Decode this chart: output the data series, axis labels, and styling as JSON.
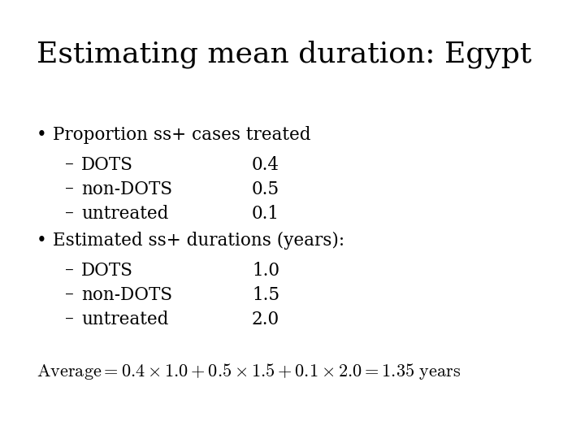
{
  "title": "Estimating mean duration: Egypt",
  "background_color": "#ffffff",
  "text_color": "#000000",
  "title_fontsize": 26,
  "body_fontsize": 15.5,
  "formula_fontsize": 16,
  "bullet1": "Proportion ss+ cases treated",
  "sub1_1": "DOTS",
  "sub1_1_val": "0.4",
  "sub1_2": "non-DOTS",
  "sub1_2_val": "0.5",
  "sub1_3": "untreated",
  "sub1_3_val": "0.1",
  "bullet2": "Estimated ss+ durations (years):",
  "sub2_1": "DOTS",
  "sub2_1_val": "1.0",
  "sub2_2": "non-DOTS",
  "sub2_2_val": "1.5",
  "sub2_3": "untreated",
  "sub2_3_val": "2.0",
  "formula": "$\\mathrm{Average} = 0.4 \\times 1.0 + 0.5 \\times 1.5 + 0.1 \\times 2.0 = 1.35\\ \\mathrm{years}$"
}
